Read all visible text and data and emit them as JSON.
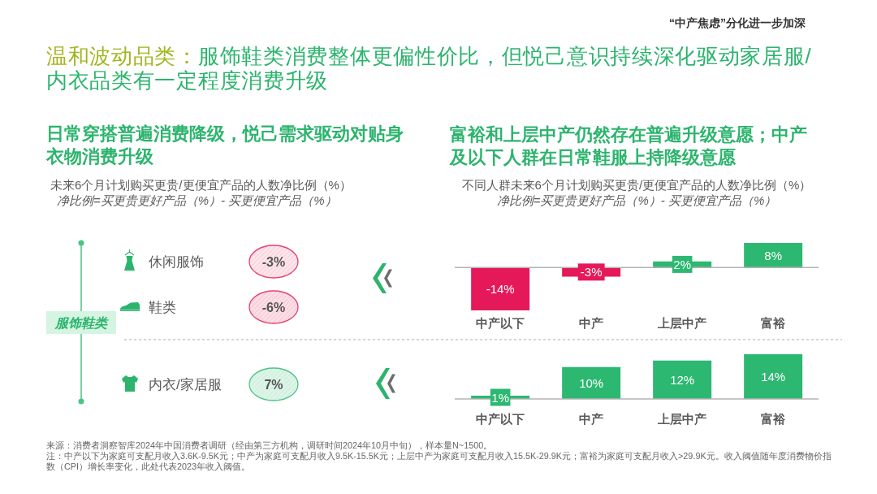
{
  "chart_data": [
    {
      "type": "other",
      "title": "温和波动品类：服饰鞋类消费整体更偏性价比，但悦己意识持续深化驱动家居服/内衣品类有一定程度消费升级",
      "subtitle": "“中产焦虑”分化进一步加深",
      "annotations": [
        "来源：消费者洞察智库2024年中国消费者调研（经由第三方机构，调研时间2024年10月中旬），样本量N~1500。",
        "注：中产以下为家庭可支配月收入3.6K-9.5K元；中产为家庭可支配月收入9.5K-15.5K元；上层中产为家庭可支配月收入15.5K-29.9K元；富裕为家庭可支配月收入>29.9K元。收入阈值随年度消费物价指数（CPI）增长率变化，此处代表2023年收入阈值。"
      ]
    },
    {
      "type": "other",
      "title": "日常穿搭普遍消费降级，悦己需求驱动对贴身衣物消费升级",
      "subtitle": "未来6个月计划购买更贵/更便宜产品的人数净比例（%）",
      "annotations": [
        "净比例=买更贵更好产品（%）- 买更便宜产品（%）",
        "服饰鞋类"
      ],
      "categories": [
        "休闲服饰",
        "鞋类",
        "内衣/家居服"
      ],
      "values": [
        -3,
        -6,
        7
      ],
      "value_labels": [
        "-3%",
        "-6%",
        "7%"
      ],
      "colors": [
        "#e8416e",
        "#e8416e",
        "#4cc584"
      ]
    },
    {
      "type": "bar",
      "title": "富裕和上层中产仍然存在普遍升级意愿；中产及以下人群在日常鞋服上持降级意愿",
      "subtitle": "不同人群未来6个月计划购买更贵/更便宜产品的人数净比例（%）",
      "annotations": [
        "净比例=买更贵更好产品（%）- 买更便宜产品（%）"
      ],
      "categories": [
        "中产以下",
        "中产",
        "上层中产",
        "富裕"
      ],
      "values": [
        -14,
        -3,
        2,
        8
      ],
      "colors": [
        "#e5195a",
        "#e5195a",
        "#2db872",
        "#2db872"
      ],
      "value_labels": [
        "-14%",
        "-3%",
        "2%",
        "8%"
      ]
    },
    {
      "type": "bar",
      "categories": [
        "中产以下",
        "中产",
        "上层中产",
        "富裕"
      ],
      "values": [
        1,
        10,
        12,
        14
      ],
      "colors": [
        "#2db872",
        "#2db872",
        "#2db872",
        "#2db872"
      ],
      "value_labels": [
        "1%",
        "10%",
        "12%",
        "14%"
      ]
    }
  ]
}
